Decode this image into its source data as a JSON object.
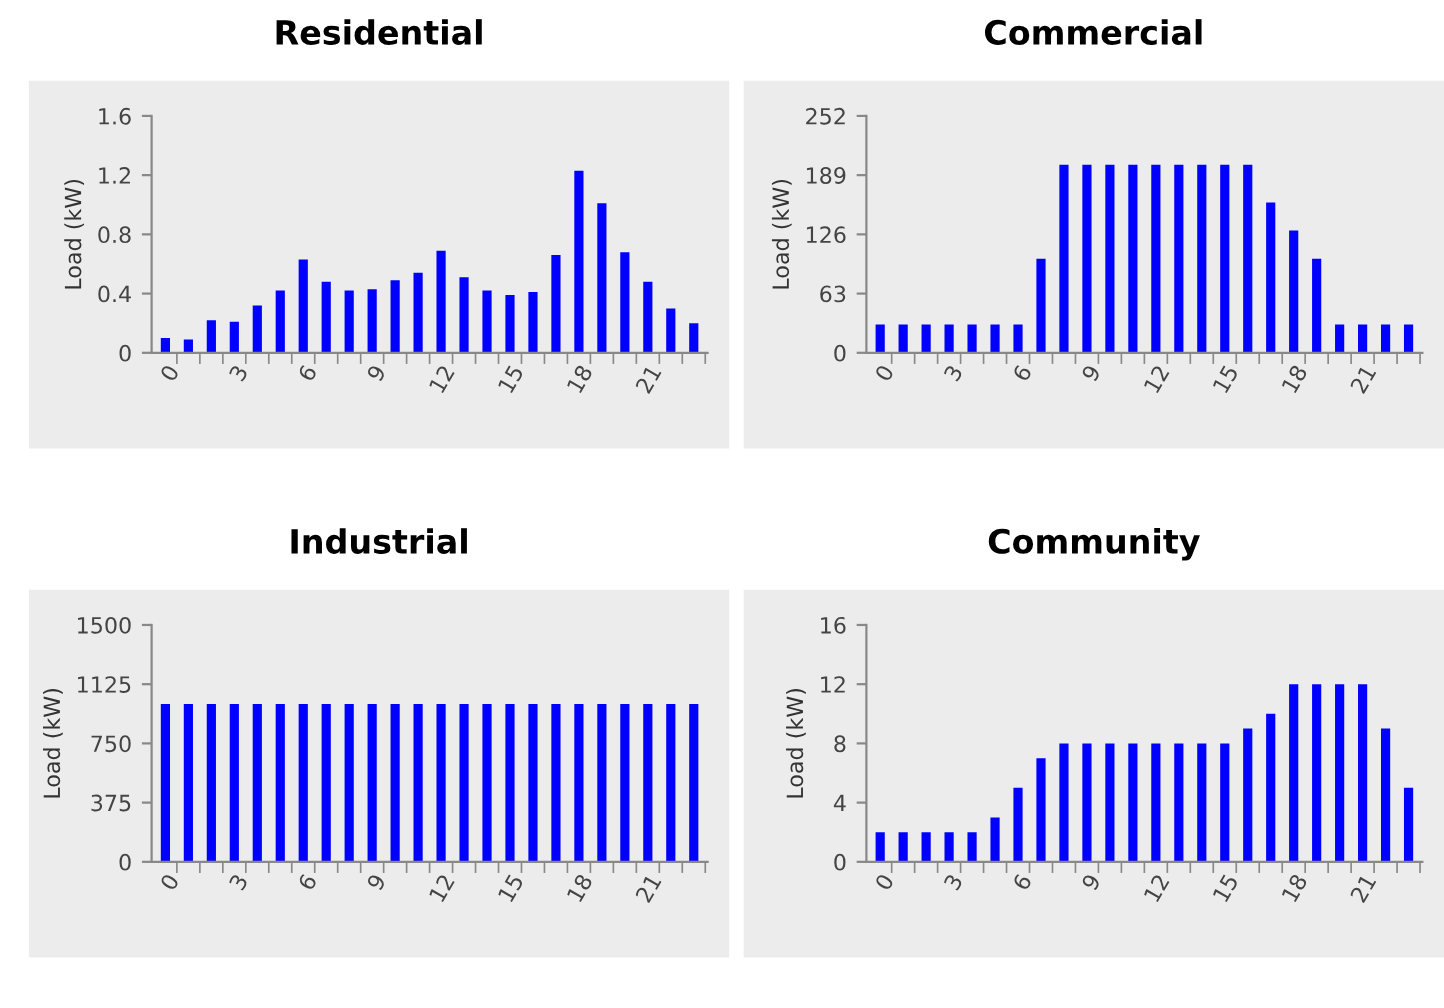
{
  "chart_data": [
    {
      "type": "bar",
      "title": "Residential",
      "ylabel": "Load (kW)",
      "categories": [
        "0",
        null,
        null,
        "3",
        null,
        null,
        "6",
        null,
        null,
        "9",
        null,
        null,
        "12",
        null,
        null,
        "15",
        null,
        null,
        "18",
        null,
        null,
        "21",
        null,
        null
      ],
      "values": [
        0.1,
        0.09,
        0.22,
        0.21,
        0.32,
        0.42,
        0.63,
        0.48,
        0.42,
        0.43,
        0.49,
        0.54,
        0.69,
        0.51,
        0.42,
        0.39,
        0.41,
        0.66,
        1.23,
        1.01,
        0.68,
        0.48,
        0.3,
        0.2
      ],
      "color": "#0000ff",
      "ylim": [
        0,
        1.6
      ],
      "yticks": [
        0,
        0.4,
        0.8,
        1.2,
        1.6
      ],
      "grid": false,
      "legend": false
    },
    {
      "type": "bar",
      "title": "Commercial",
      "ylabel": "Load (kW)",
      "categories": [
        "0",
        null,
        null,
        "3",
        null,
        null,
        "6",
        null,
        null,
        "9",
        null,
        null,
        "12",
        null,
        null,
        "15",
        null,
        null,
        "18",
        null,
        null,
        "21",
        null,
        null
      ],
      "values": [
        30,
        30,
        30,
        30,
        30,
        30,
        30,
        100,
        200,
        200,
        200,
        200,
        200,
        200,
        200,
        200,
        200,
        160,
        130,
        100,
        30,
        30,
        30,
        30
      ],
      "color": "#0000ff",
      "ylim": [
        0,
        252
      ],
      "yticks": [
        0,
        63,
        126,
        189,
        252
      ],
      "grid": false,
      "legend": false
    },
    {
      "type": "bar",
      "title": "Industrial",
      "ylabel": "Load (kW)",
      "categories": [
        "0",
        null,
        null,
        "3",
        null,
        null,
        "6",
        null,
        null,
        "9",
        null,
        null,
        "12",
        null,
        null,
        "15",
        null,
        null,
        "18",
        null,
        null,
        "21",
        null,
        null
      ],
      "values": [
        1000,
        1000,
        1000,
        1000,
        1000,
        1000,
        1000,
        1000,
        1000,
        1000,
        1000,
        1000,
        1000,
        1000,
        1000,
        1000,
        1000,
        1000,
        1000,
        1000,
        1000,
        1000,
        1000,
        1000
      ],
      "color": "#0000ff",
      "ylim": [
        0,
        1500
      ],
      "yticks": [
        0,
        375,
        750,
        1125,
        1500
      ],
      "grid": false,
      "legend": false
    },
    {
      "type": "bar",
      "title": "Community",
      "ylabel": "Load (kW)",
      "categories": [
        "0",
        null,
        null,
        "3",
        null,
        null,
        "6",
        null,
        null,
        "9",
        null,
        null,
        "12",
        null,
        null,
        "15",
        null,
        null,
        "18",
        null,
        null,
        "21",
        null,
        null
      ],
      "values": [
        2,
        2,
        2,
        2,
        2,
        3,
        5,
        7,
        8,
        8,
        8,
        8,
        8,
        8,
        8,
        8,
        9,
        10,
        12,
        12,
        12,
        12,
        9,
        5
      ],
      "color": "#0000ff",
      "ylim": [
        0,
        16
      ],
      "yticks": [
        0,
        4,
        8,
        12,
        16
      ],
      "grid": false,
      "legend": false
    }
  ]
}
